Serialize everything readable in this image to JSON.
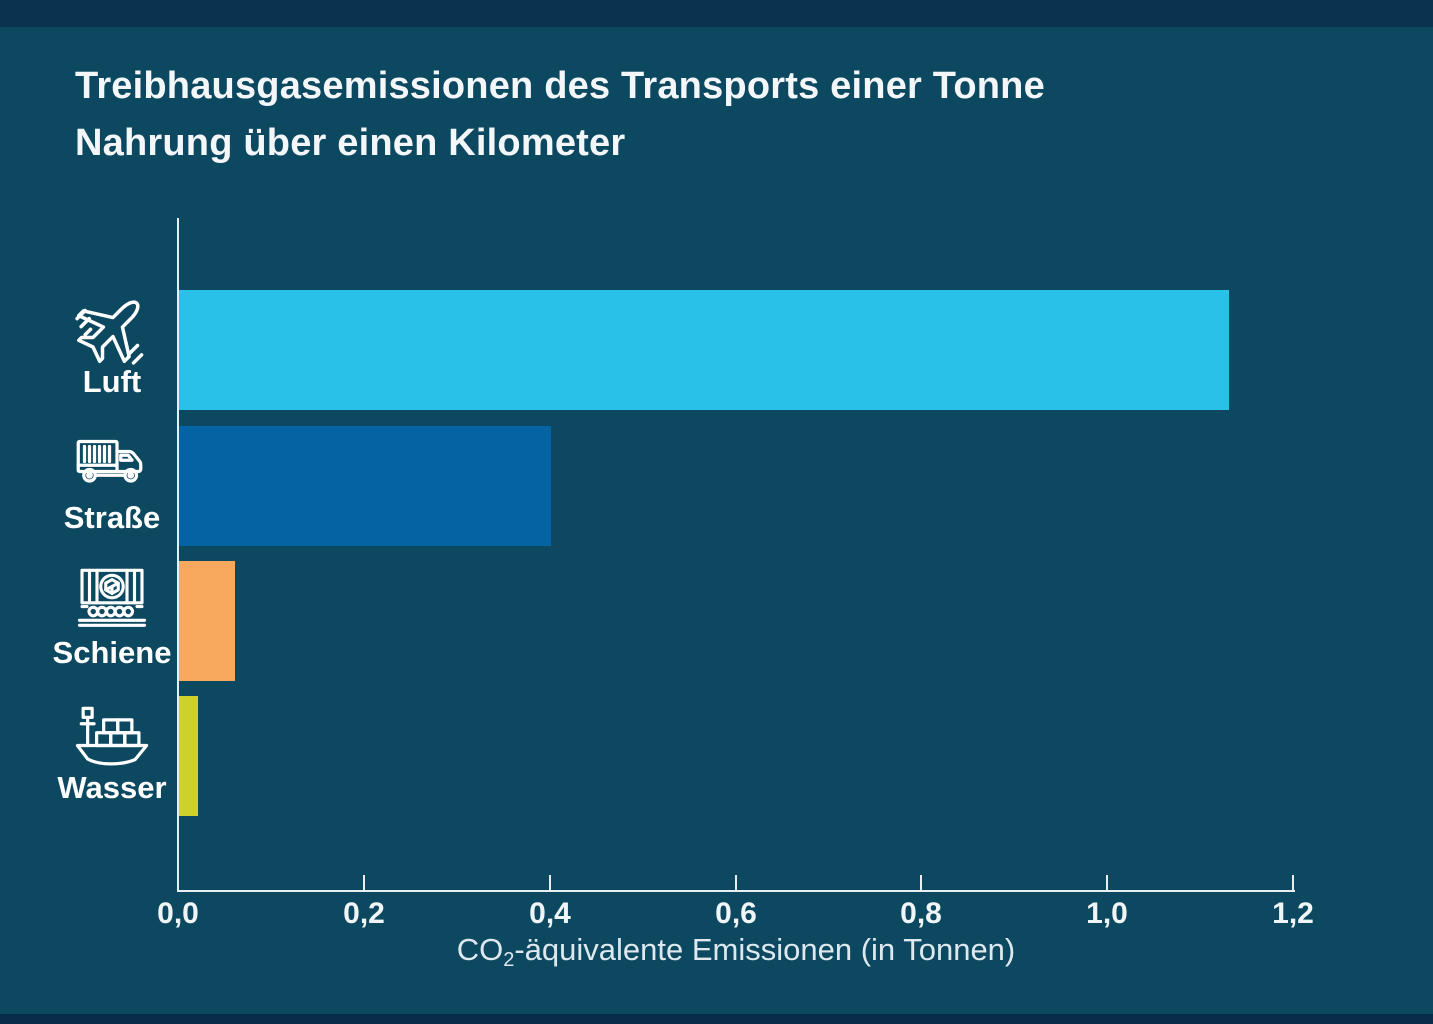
{
  "title_lines": [
    "Treibhausgasemissionen des Transports einer Tonne",
    "Nahrung über einen Kilometer"
  ],
  "x_axis_label": {
    "pre": "CO",
    "sub": "2",
    "post": "-äquivalente Emissionen (in Tonnen)"
  },
  "chart_data": {
    "type": "bar",
    "orientation": "horizontal",
    "title": "Treibhausgasemissionen des Transports einer Tonne Nahrung über einen Kilometer",
    "xlabel": "CO2-äquivalente Emissionen (in Tonnen)",
    "categories": [
      "Luft",
      "Straße",
      "Schiene",
      "Wasser"
    ],
    "values": [
      1.13,
      0.4,
      0.06,
      0.02
    ],
    "bar_colors": [
      "#29c1e8",
      "#0663a3",
      "#f9a95d",
      "#cdd12b"
    ],
    "icons": [
      "plane-icon",
      "truck-icon",
      "train-icon",
      "ship-icon"
    ],
    "xlim": [
      0,
      1.2
    ],
    "xticks": [
      "0,0",
      "0,2",
      "0,4",
      "0,6",
      "0,8",
      "1,0",
      "1,2"
    ],
    "xtick_values": [
      0,
      0.2,
      0.4,
      0.6,
      0.8,
      1.0,
      1.2
    ],
    "grid": false,
    "legend": false
  },
  "colors": {
    "background": "#0d4861",
    "strip_top": "#0a334f",
    "strip_bottom": "#0a2c4b",
    "axis": "#e8eef2",
    "title_text": "#f3f7f9",
    "tick_text": "#f0f5f8",
    "xlabel_text": "#dde9ef"
  }
}
